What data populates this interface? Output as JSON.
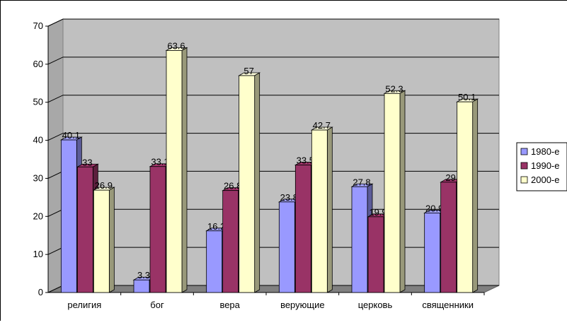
{
  "chart_data": {
    "type": "bar",
    "categories": [
      "религия",
      "бог",
      "вера",
      "верующие",
      "церковь",
      "священники"
    ],
    "series": [
      {
        "name": "1980-е",
        "values": [
          40.1,
          3.3,
          16.2,
          23.8,
          27.8,
          20.9
        ],
        "color": "#9999ff"
      },
      {
        "name": "1990-е",
        "values": [
          33,
          33.1,
          26.8,
          33.5,
          19.9,
          29
        ],
        "color": "#993366"
      },
      {
        "name": "2000-е",
        "values": [
          26.9,
          63.6,
          57,
          42.7,
          52.3,
          50.1
        ],
        "color": "#ffffcc"
      }
    ],
    "ylim": [
      0,
      70
    ],
    "yticks": [
      0,
      10,
      20,
      30,
      40,
      50,
      60,
      70
    ],
    "grid": true,
    "legend_position": "right",
    "wall_color": "#c0c0c0",
    "title": "",
    "xlabel": "",
    "ylabel": ""
  }
}
